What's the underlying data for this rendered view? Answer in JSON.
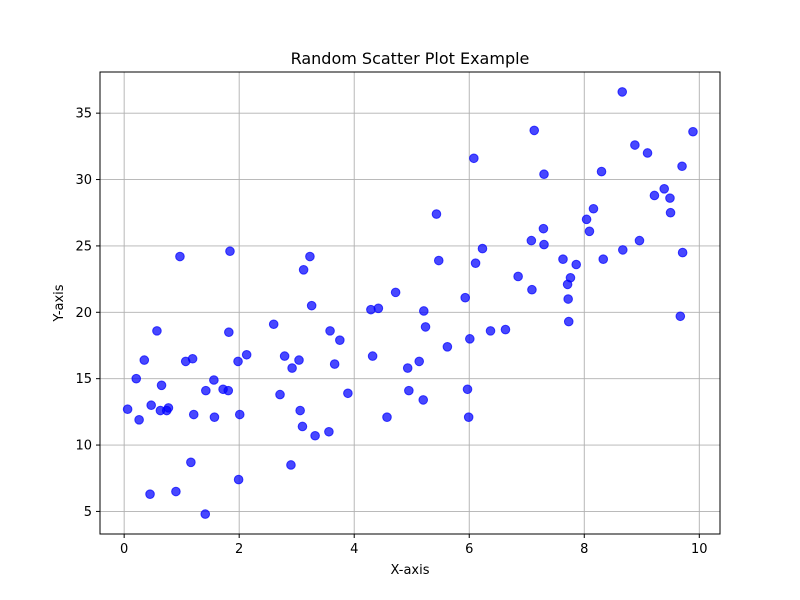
{
  "chart_data": {
    "type": "scatter",
    "title": "Random Scatter Plot Example",
    "xlabel": "X-axis",
    "ylabel": "Y-axis",
    "xlim": [
      -0.42,
      10.36
    ],
    "ylim": [
      3.3,
      38.1
    ],
    "xticks": [
      0,
      2,
      4,
      6,
      8,
      10
    ],
    "yticks": [
      5,
      10,
      15,
      20,
      25,
      30,
      35
    ],
    "grid": true,
    "legend": false,
    "point_color": "#0000ff",
    "point_opacity": 0.72,
    "series": [
      {
        "x": [
          0.06,
          0.21,
          0.26,
          0.35,
          0.45,
          0.47,
          0.57,
          0.63,
          0.65,
          0.74,
          0.77,
          0.9,
          0.97,
          1.07,
          1.16,
          1.19,
          1.21,
          1.41,
          1.42,
          1.56,
          1.57,
          1.72,
          1.81,
          1.82,
          1.84,
          1.98,
          1.99,
          2.01,
          2.13,
          2.6,
          2.71,
          2.79,
          2.9,
          2.92,
          3.04,
          3.06,
          3.1,
          3.12,
          3.23,
          3.26,
          3.32,
          3.56,
          3.58,
          3.66,
          3.75,
          3.89,
          4.29,
          4.32,
          4.42,
          4.57,
          4.72,
          4.93,
          4.95,
          5.13,
          5.2,
          5.21,
          5.24,
          5.43,
          5.47,
          5.62,
          5.93,
          5.97,
          5.99,
          6.01,
          6.08,
          6.11,
          6.23,
          6.37,
          6.63,
          6.85,
          7.08,
          7.09,
          7.13,
          7.29,
          7.3,
          7.3,
          7.63,
          7.71,
          7.72,
          7.73,
          7.76,
          7.86,
          8.04,
          8.09,
          8.16,
          8.3,
          8.33,
          8.66,
          8.67,
          8.88,
          8.96,
          9.1,
          9.22,
          9.39,
          9.49,
          9.5,
          9.67,
          9.7,
          9.71,
          9.89
        ],
        "y": [
          12.7,
          15.0,
          11.9,
          16.4,
          6.3,
          13.0,
          18.6,
          12.6,
          14.5,
          12.6,
          12.8,
          6.5,
          24.2,
          16.3,
          8.7,
          16.5,
          12.3,
          4.8,
          14.1,
          14.9,
          12.1,
          14.2,
          14.1,
          18.5,
          24.6,
          16.3,
          7.4,
          12.3,
          16.8,
          19.1,
          13.8,
          16.7,
          8.5,
          15.8,
          16.4,
          12.6,
          11.4,
          23.2,
          24.2,
          20.5,
          10.7,
          11.0,
          18.6,
          16.1,
          17.9,
          13.9,
          20.2,
          16.7,
          20.3,
          12.1,
          21.5,
          15.8,
          14.1,
          16.3,
          13.4,
          20.1,
          18.9,
          27.4,
          23.9,
          17.4,
          21.1,
          14.2,
          12.1,
          18.0,
          31.6,
          23.7,
          24.8,
          18.6,
          18.7,
          22.7,
          25.4,
          21.7,
          33.7,
          26.3,
          30.4,
          25.1,
          24.0,
          22.1,
          21.0,
          19.3,
          22.6,
          23.6,
          27.0,
          26.1,
          27.8,
          30.6,
          24.0,
          36.6,
          24.7,
          32.6,
          25.4,
          32.0,
          28.8,
          29.3,
          28.6,
          27.5,
          19.7,
          31.0,
          24.5,
          33.6
        ]
      }
    ]
  }
}
